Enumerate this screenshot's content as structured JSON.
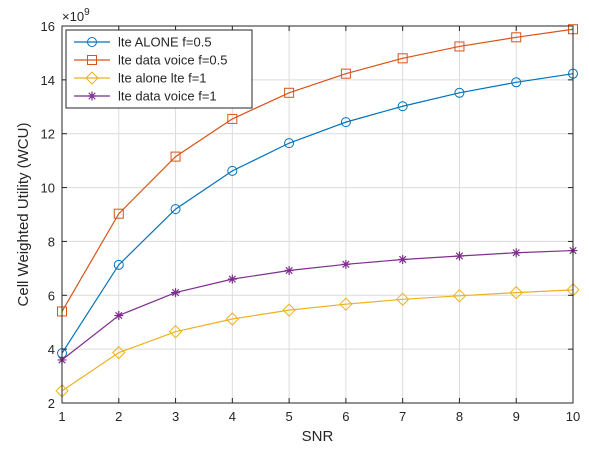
{
  "chart_data": {
    "type": "line",
    "title": "",
    "xlabel": "SNR",
    "ylabel": "Cell Weighted Utility (WCU)",
    "y_exponent_label": "×10",
    "y_exponent_power": "9",
    "x": [
      1,
      2,
      3,
      4,
      5,
      6,
      7,
      8,
      9,
      10
    ],
    "xlim": [
      1,
      10
    ],
    "ylim": [
      2,
      16
    ],
    "xticks": [
      "1",
      "2",
      "3",
      "4",
      "5",
      "6",
      "7",
      "8",
      "9",
      "10"
    ],
    "yticks": [
      "2",
      "4",
      "6",
      "8",
      "10",
      "12",
      "14",
      "16"
    ],
    "grid": true,
    "legend_position": "top-left",
    "series": [
      {
        "name": "lte ALONE f=0.5",
        "color": "#0072BD",
        "marker": "circle",
        "values": [
          3.85,
          7.13,
          9.2,
          10.62,
          11.65,
          12.43,
          13.02,
          13.52,
          13.91,
          14.23
        ]
      },
      {
        "name": "lte data voice f=0.5",
        "color": "#D95319",
        "marker": "square",
        "values": [
          5.4,
          9.03,
          11.15,
          12.55,
          13.52,
          14.23,
          14.8,
          15.24,
          15.58,
          15.88
        ]
      },
      {
        "name": "lte alone lte f=1",
        "color": "#EDB120",
        "marker": "diamond",
        "values": [
          2.45,
          3.87,
          4.65,
          5.12,
          5.45,
          5.67,
          5.85,
          5.98,
          6.1,
          6.2
        ]
      },
      {
        "name": "lte data voice f=1",
        "color": "#7E2F8E",
        "marker": "asterisk",
        "values": [
          3.6,
          5.25,
          6.1,
          6.6,
          6.92,
          7.15,
          7.33,
          7.46,
          7.58,
          7.66
        ]
      }
    ]
  }
}
